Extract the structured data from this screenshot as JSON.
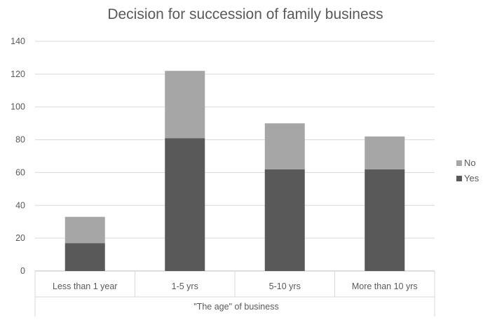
{
  "chart_data": {
    "type": "bar",
    "stacked": true,
    "title": "Decision for succession of family business",
    "xlabel": "\"The age\" of business",
    "ylabel": "",
    "ylim": [
      0,
      140
    ],
    "yticks": [
      0,
      20,
      40,
      60,
      80,
      100,
      120,
      140
    ],
    "grid": true,
    "legend_position": "right",
    "categories": [
      "Less than 1 year",
      "1-5 yrs",
      "5-10 yrs",
      "More than 10 yrs"
    ],
    "series": [
      {
        "name": "Yes",
        "color": "#595959",
        "values": [
          17,
          81,
          62,
          62
        ]
      },
      {
        "name": "No",
        "color": "#a6a6a6",
        "values": [
          16,
          41,
          28,
          20
        ]
      }
    ]
  }
}
